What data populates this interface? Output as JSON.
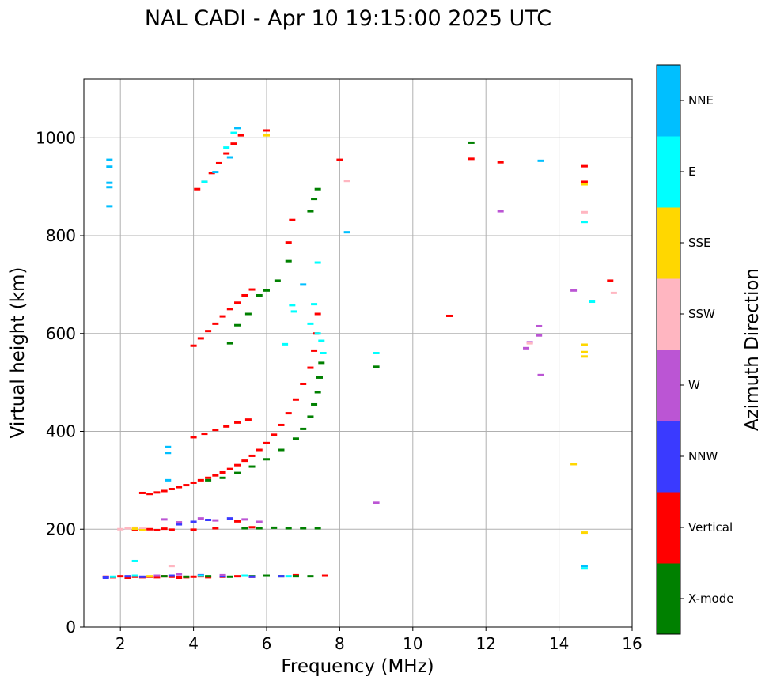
{
  "chart_data": {
    "type": "scatter",
    "title": "NAL CADI - Apr 10 19:15:00 2025 UTC",
    "xlabel": "Frequency (MHz)",
    "ylabel": "Virtual height (km)",
    "xlim": [
      1,
      16
    ],
    "ylim": [
      0,
      1120
    ],
    "xticks": [
      2,
      4,
      6,
      8,
      10,
      12,
      14,
      16
    ],
    "yticks": [
      0,
      200,
      400,
      600,
      800,
      1000
    ],
    "grid": true,
    "colorbar": {
      "label": "Azimuth Direction",
      "categories": [
        {
          "name": "X-mode",
          "color": "#008000"
        },
        {
          "name": "Vertical",
          "color": "#ff0000"
        },
        {
          "name": "NNW",
          "color": "#3a3aff"
        },
        {
          "name": "W",
          "color": "#bb55d4"
        },
        {
          "name": "SSW",
          "color": "#ffb6c1"
        },
        {
          "name": "SSE",
          "color": "#ffd700"
        },
        {
          "name": "E",
          "color": "#00ffff"
        },
        {
          "name": "NNE",
          "color": "#00bfff"
        }
      ]
    },
    "series": [
      {
        "name": "Vertical",
        "points": [
          [
            1.6,
            103
          ],
          [
            1.8,
            102
          ],
          [
            2.0,
            104
          ],
          [
            2.2,
            101
          ],
          [
            2.4,
            103
          ],
          [
            2.6,
            102
          ],
          [
            2.8,
            103
          ],
          [
            3.0,
            102
          ],
          [
            3.2,
            104
          ],
          [
            3.4,
            103
          ],
          [
            3.6,
            101
          ],
          [
            3.8,
            102
          ],
          [
            4.0,
            103
          ],
          [
            4.2,
            104
          ],
          [
            4.4,
            102
          ],
          [
            4.8,
            103
          ],
          [
            5.2,
            104
          ],
          [
            5.6,
            103
          ],
          [
            6.8,
            106
          ],
          [
            7.6,
            105
          ],
          [
            2.4,
            198
          ],
          [
            2.8,
            200
          ],
          [
            3.0,
            198
          ],
          [
            3.2,
            201
          ],
          [
            3.4,
            199
          ],
          [
            4.0,
            199
          ],
          [
            4.6,
            202
          ],
          [
            5.2,
            216
          ],
          [
            5.6,
            204
          ],
          [
            2.6,
            274
          ],
          [
            2.8,
            272
          ],
          [
            3.0,
            275
          ],
          [
            3.2,
            278
          ],
          [
            3.4,
            282
          ],
          [
            3.6,
            286
          ],
          [
            3.8,
            290
          ],
          [
            4.0,
            295
          ],
          [
            4.2,
            300
          ],
          [
            4.4,
            305
          ],
          [
            4.6,
            310
          ],
          [
            4.8,
            316
          ],
          [
            5.0,
            323
          ],
          [
            5.2,
            331
          ],
          [
            5.4,
            340
          ],
          [
            5.6,
            350
          ],
          [
            5.8,
            362
          ],
          [
            6.0,
            376
          ],
          [
            6.2,
            393
          ],
          [
            6.4,
            413
          ],
          [
            6.6,
            437
          ],
          [
            6.8,
            465
          ],
          [
            7.0,
            497
          ],
          [
            7.2,
            530
          ],
          [
            7.3,
            565
          ],
          [
            7.35,
            600
          ],
          [
            7.4,
            640
          ],
          [
            4.0,
            388
          ],
          [
            4.3,
            395
          ],
          [
            4.6,
            403
          ],
          [
            4.9,
            410
          ],
          [
            5.2,
            418
          ],
          [
            5.5,
            424
          ],
          [
            4.0,
            575
          ],
          [
            4.2,
            590
          ],
          [
            4.4,
            605
          ],
          [
            4.6,
            620
          ],
          [
            4.8,
            635
          ],
          [
            5.0,
            650
          ],
          [
            5.2,
            663
          ],
          [
            5.4,
            678
          ],
          [
            5.6,
            690
          ],
          [
            4.1,
            895
          ],
          [
            4.3,
            910
          ],
          [
            4.5,
            928
          ],
          [
            4.7,
            948
          ],
          [
            4.9,
            968
          ],
          [
            5.1,
            988
          ],
          [
            5.3,
            1005
          ],
          [
            6.0,
            1015
          ],
          [
            6.7,
            832
          ],
          [
            6.6,
            786
          ],
          [
            8.0,
            955
          ],
          [
            11.0,
            636
          ],
          [
            11.6,
            957
          ],
          [
            12.4,
            950
          ],
          [
            14.7,
            942
          ],
          [
            14.7,
            910
          ],
          [
            15.4,
            708
          ]
        ]
      },
      {
        "name": "X-mode",
        "points": [
          [
            3.2,
            104
          ],
          [
            3.8,
            103
          ],
          [
            4.4,
            104
          ],
          [
            5.0,
            103
          ],
          [
            5.6,
            104
          ],
          [
            6.0,
            105
          ],
          [
            6.4,
            104
          ],
          [
            6.8,
            104
          ],
          [
            7.2,
            104
          ],
          [
            5.4,
            202
          ],
          [
            5.8,
            202
          ],
          [
            6.2,
            203
          ],
          [
            6.6,
            202
          ],
          [
            7.0,
            202
          ],
          [
            7.4,
            202
          ],
          [
            4.4,
            300
          ],
          [
            4.8,
            305
          ],
          [
            5.2,
            315
          ],
          [
            5.6,
            328
          ],
          [
            6.0,
            343
          ],
          [
            6.4,
            362
          ],
          [
            6.8,
            385
          ],
          [
            7.0,
            405
          ],
          [
            7.2,
            430
          ],
          [
            7.3,
            455
          ],
          [
            7.4,
            480
          ],
          [
            7.45,
            510
          ],
          [
            7.5,
            540
          ],
          [
            5.0,
            580
          ],
          [
            5.2,
            617
          ],
          [
            5.5,
            640
          ],
          [
            5.8,
            678
          ],
          [
            6.0,
            688
          ],
          [
            6.3,
            708
          ],
          [
            6.6,
            748
          ],
          [
            7.2,
            850
          ],
          [
            7.3,
            875
          ],
          [
            7.4,
            895
          ],
          [
            9.0,
            532
          ],
          [
            11.6,
            990
          ]
        ]
      },
      {
        "name": "NNW",
        "points": [
          [
            1.6,
            101
          ],
          [
            2.2,
            104
          ],
          [
            2.6,
            103
          ],
          [
            3.4,
            105
          ],
          [
            4.2,
            106
          ],
          [
            4.8,
            104
          ],
          [
            5.6,
            103
          ],
          [
            6.4,
            104
          ],
          [
            3.6,
            210
          ],
          [
            4.0,
            215
          ],
          [
            4.4,
            219
          ],
          [
            5.0,
            222
          ]
        ]
      },
      {
        "name": "W",
        "points": [
          [
            3.0,
            105
          ],
          [
            3.6,
            108
          ],
          [
            4.8,
            106
          ],
          [
            3.2,
            220
          ],
          [
            3.6,
            214
          ],
          [
            4.2,
            222
          ],
          [
            4.6,
            218
          ],
          [
            5.4,
            220
          ],
          [
            5.8,
            215
          ],
          [
            9.0,
            254
          ],
          [
            13.1,
            570
          ],
          [
            13.2,
            582
          ],
          [
            13.45,
            596
          ],
          [
            13.45,
            615
          ],
          [
            13.5,
            515
          ],
          [
            12.4,
            850
          ],
          [
            14.4,
            688
          ]
        ]
      },
      {
        "name": "SSW",
        "points": [
          [
            2.0,
            200
          ],
          [
            2.2,
            202
          ],
          [
            2.4,
            203
          ],
          [
            2.6,
            201
          ],
          [
            3.4,
            125
          ],
          [
            8.2,
            912
          ],
          [
            13.2,
            580
          ],
          [
            14.7,
            848
          ],
          [
            15.5,
            683
          ]
        ]
      },
      {
        "name": "SSE",
        "points": [
          [
            2.4,
            201
          ],
          [
            2.6,
            198
          ],
          [
            2.8,
            104
          ],
          [
            14.4,
            333
          ],
          [
            14.7,
            193
          ],
          [
            14.7,
            553
          ],
          [
            14.7,
            562
          ],
          [
            14.7,
            577
          ],
          [
            14.7,
            905
          ],
          [
            6.0,
            1005
          ]
        ]
      },
      {
        "name": "E",
        "points": [
          [
            1.8,
            103
          ],
          [
            2.4,
            105
          ],
          [
            4.2,
            105
          ],
          [
            5.4,
            105
          ],
          [
            6.6,
            104
          ],
          [
            6.7,
            658
          ],
          [
            6.75,
            645
          ],
          [
            7.2,
            620
          ],
          [
            7.3,
            660
          ],
          [
            7.4,
            600
          ],
          [
            7.5,
            585
          ],
          [
            7.55,
            560
          ],
          [
            7.4,
            745
          ],
          [
            6.5,
            578
          ],
          [
            2.4,
            135
          ],
          [
            4.3,
            910
          ],
          [
            4.9,
            980
          ],
          [
            5.1,
            1010
          ],
          [
            14.7,
            828
          ],
          [
            14.7,
            120
          ],
          [
            14.9,
            665
          ],
          [
            9.0,
            560
          ]
        ]
      },
      {
        "name": "NNE",
        "points": [
          [
            1.7,
            955
          ],
          [
            1.7,
            941
          ],
          [
            1.7,
            908
          ],
          [
            1.7,
            899
          ],
          [
            1.7,
            860
          ],
          [
            3.3,
            300
          ],
          [
            3.3,
            368
          ],
          [
            3.3,
            356
          ],
          [
            4.6,
            930
          ],
          [
            5.0,
            960
          ],
          [
            5.2,
            1020
          ],
          [
            8.2,
            807
          ],
          [
            13.5,
            953
          ],
          [
            14.7,
            125
          ],
          [
            7.0,
            700
          ]
        ]
      }
    ]
  }
}
